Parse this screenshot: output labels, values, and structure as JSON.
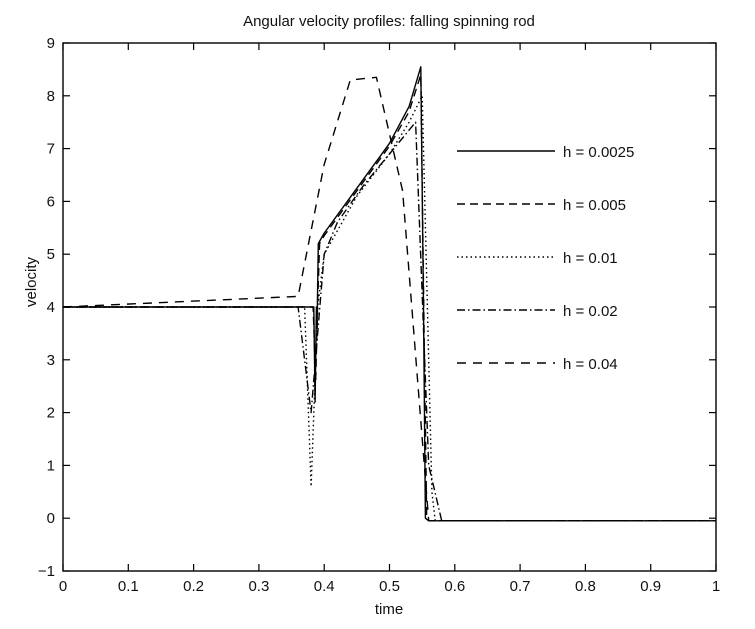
{
  "chart_data": {
    "type": "line",
    "title": "Angular velocity profiles: falling spinning rod",
    "xlabel": "time",
    "ylabel": "velocity",
    "xlim": [
      0,
      1
    ],
    "ylim": [
      -1,
      9
    ],
    "xticks": [
      0,
      0.1,
      0.2,
      0.3,
      0.4,
      0.5,
      0.6,
      0.7,
      0.8,
      0.9,
      1
    ],
    "xtick_labels": [
      "0",
      "0.1",
      "0.2",
      "0.3",
      "0.4",
      "0.5",
      "0.6",
      "0.7",
      "0.8",
      "0.9",
      "1"
    ],
    "yticks": [
      -1,
      0,
      1,
      2,
      3,
      4,
      5,
      6,
      7,
      8,
      9
    ],
    "ytick_labels": [
      "−1",
      "0",
      "1",
      "2",
      "3",
      "4",
      "5",
      "6",
      "7",
      "8",
      "9"
    ],
    "grid": false,
    "legend_position": "right",
    "series": [
      {
        "name": "h = 0.0025",
        "style": "solid",
        "x": [
          0,
          0.384,
          0.386,
          0.388,
          0.389,
          0.391,
          0.4,
          0.45,
          0.5,
          0.53,
          0.548,
          0.552,
          0.555,
          0.56,
          0.7,
          1.0
        ],
        "y": [
          4,
          4,
          2.2,
          4.0,
          3.6,
          5.2,
          5.4,
          6.25,
          7.1,
          7.8,
          8.55,
          4.0,
          0,
          -0.05,
          -0.05,
          -0.05
        ]
      },
      {
        "name": "h = 0.005",
        "style": "dashed",
        "x": [
          0,
          0.383,
          0.387,
          0.39,
          0.393,
          0.4,
          0.45,
          0.5,
          0.53,
          0.548,
          0.553,
          0.557,
          0.56,
          1.0
        ],
        "y": [
          4,
          4,
          2.6,
          4.1,
          5.2,
          5.35,
          6.2,
          7.05,
          7.7,
          8.4,
          3.5,
          0,
          -0.05,
          -0.05
        ]
      },
      {
        "name": "h = 0.01",
        "style": "dotted",
        "x": [
          0,
          0.37,
          0.38,
          0.39,
          0.4,
          0.45,
          0.5,
          0.53,
          0.55,
          0.56,
          0.565,
          0.57,
          1.0
        ],
        "y": [
          4,
          4,
          0.6,
          4.0,
          5.0,
          6.1,
          6.9,
          7.5,
          8.0,
          3.0,
          0.5,
          -0.05,
          -0.05
        ]
      },
      {
        "name": "h = 0.02",
        "style": "dashdot",
        "x": [
          0,
          0.36,
          0.38,
          0.4,
          0.42,
          0.44,
          0.46,
          0.48,
          0.5,
          0.52,
          0.54,
          0.56,
          0.58,
          1.0
        ],
        "y": [
          4,
          4,
          2.0,
          5.0,
          5.6,
          5.95,
          6.3,
          6.6,
          6.9,
          7.2,
          7.5,
          1.0,
          -0.05,
          -0.05
        ]
      },
      {
        "name": "h = 0.04",
        "style": "longdash",
        "x": [
          0,
          0.36,
          0.4,
          0.44,
          0.48,
          0.52,
          0.56,
          0.6,
          1.0
        ],
        "y": [
          4,
          4.2,
          6.7,
          8.3,
          8.35,
          6.2,
          -0.05,
          -0.05,
          -0.05
        ]
      }
    ]
  }
}
